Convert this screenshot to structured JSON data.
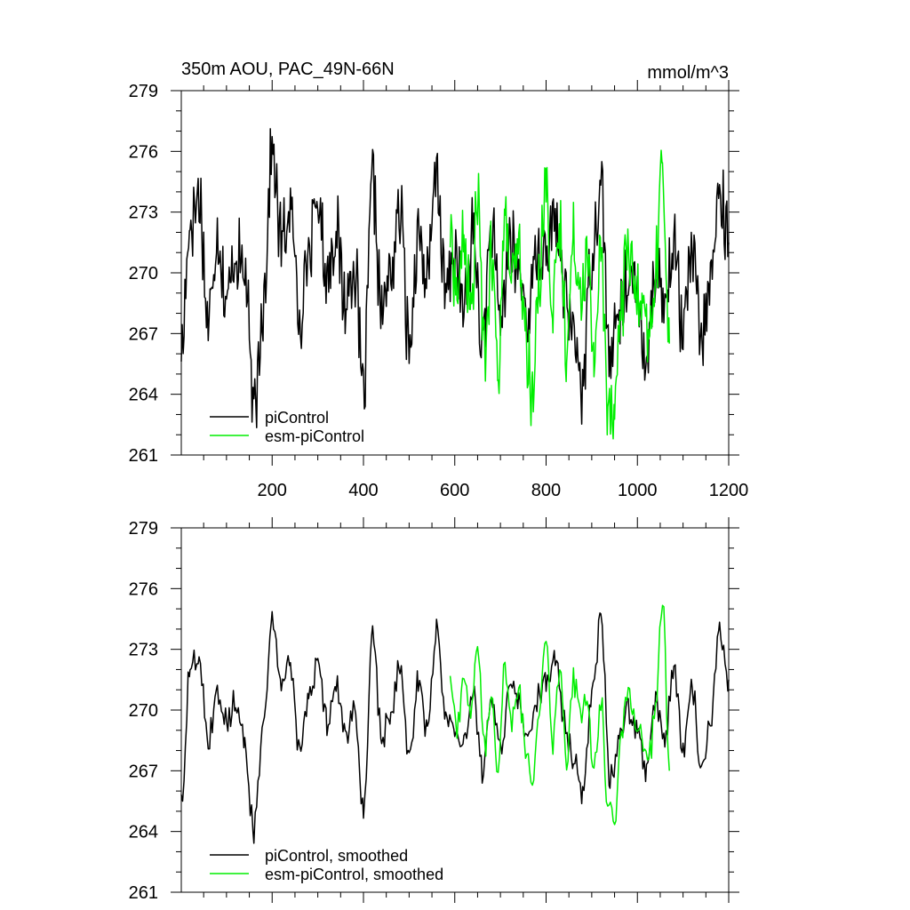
{
  "chart_data": [
    {
      "type": "line",
      "title": "350m AOU, PAC_49N-66N",
      "units": "mmol/m^3",
      "xlabel": "",
      "ylabel": "",
      "xlim": [
        1,
        1200
      ],
      "ylim": [
        261,
        279
      ],
      "xticks": [
        200,
        400,
        600,
        800,
        1000,
        1200
      ],
      "yticks": [
        261,
        264,
        267,
        270,
        273,
        276,
        279
      ],
      "x_tick_labels": [
        "200",
        "400",
        "600",
        "800",
        "1000",
        "1200"
      ],
      "y_tick_labels": [
        "261",
        "264",
        "267",
        "270",
        "273",
        "276",
        "279"
      ],
      "legend": [
        "piControl",
        "esm-piControl"
      ],
      "legend_position": "bottom-left",
      "series": [
        {
          "name": "piControl",
          "color": "#000000",
          "x": [
            1,
            20,
            40,
            60,
            80,
            100,
            120,
            140,
            160,
            180,
            200,
            220,
            240,
            260,
            280,
            300,
            320,
            340,
            360,
            380,
            400,
            420,
            440,
            460,
            480,
            500,
            520,
            540,
            560,
            580,
            600,
            620,
            640,
            660,
            680,
            700,
            720,
            740,
            760,
            780,
            800,
            820,
            840,
            860,
            880,
            900,
            920,
            940,
            960,
            980,
            1000,
            1020,
            1040,
            1060,
            1080,
            1100,
            1120,
            1140,
            1160,
            1180,
            1200
          ],
          "y": [
            266.0,
            272.5,
            273.8,
            267.5,
            272.0,
            268.5,
            271.0,
            270.0,
            263.0,
            268.5,
            276.0,
            271.5,
            273.0,
            268.0,
            271.0,
            273.5,
            270.0,
            272.0,
            268.5,
            270.5,
            264.0,
            274.5,
            268.0,
            270.0,
            273.0,
            266.5,
            272.0,
            269.5,
            275.0,
            269.0,
            271.0,
            268.0,
            272.0,
            266.5,
            272.0,
            267.5,
            271.5,
            270.0,
            268.0,
            271.0,
            270.5,
            273.0,
            269.0,
            267.0,
            264.5,
            271.0,
            274.5,
            265.5,
            268.0,
            270.0,
            268.5,
            266.0,
            270.5,
            268.5,
            271.5,
            267.0,
            271.0,
            266.5,
            269.5,
            274.0,
            271.5
          ]
        },
        {
          "name": "esm-piControl",
          "color": "#00ee00",
          "x": [
            590,
            605,
            620,
            635,
            650,
            665,
            680,
            695,
            710,
            725,
            740,
            755,
            770,
            785,
            800,
            815,
            830,
            845,
            860,
            875,
            890,
            905,
            920,
            935,
            950,
            965,
            980,
            995,
            1010,
            1025,
            1040,
            1055,
            1070
          ],
          "y": [
            272.0,
            269.0,
            271.5,
            268.0,
            273.5,
            266.0,
            270.5,
            265.5,
            272.5,
            269.5,
            271.0,
            267.0,
            263.5,
            270.0,
            274.5,
            268.0,
            272.0,
            266.5,
            271.5,
            269.5,
            270.5,
            266.0,
            271.0,
            264.0,
            263.5,
            268.5,
            271.5,
            269.0,
            268.0,
            266.5,
            270.0,
            275.5,
            266.5
          ]
        }
      ]
    },
    {
      "type": "line",
      "title": "",
      "xlabel": "",
      "ylabel": "",
      "xlim": [
        1,
        1200
      ],
      "ylim": [
        261,
        279
      ],
      "xticks": [
        200,
        400,
        600,
        800,
        1000,
        1200
      ],
      "yticks": [
        261,
        264,
        267,
        270,
        273,
        276,
        279
      ],
      "y_tick_labels": [
        "261",
        "264",
        "267",
        "270",
        "273",
        "276",
        "279"
      ],
      "legend": [
        "piControl, smoothed",
        "esm-piControl, smoothed"
      ],
      "legend_position": "bottom-left",
      "series": [
        {
          "name": "piControl, smoothed",
          "color": "#000000",
          "x": [
            1,
            20,
            40,
            60,
            80,
            100,
            120,
            140,
            160,
            180,
            200,
            220,
            240,
            260,
            280,
            300,
            320,
            340,
            360,
            380,
            400,
            420,
            440,
            460,
            480,
            500,
            520,
            540,
            560,
            580,
            600,
            620,
            640,
            660,
            680,
            700,
            720,
            740,
            760,
            780,
            800,
            820,
            840,
            860,
            880,
            900,
            920,
            940,
            960,
            980,
            1000,
            1020,
            1040,
            1060,
            1080,
            1100,
            1120,
            1140,
            1160,
            1180,
            1200
          ],
          "y": [
            265.5,
            272.0,
            272.8,
            268.5,
            271.0,
            269.5,
            270.5,
            268.5,
            264.0,
            269.0,
            274.5,
            271.0,
            272.5,
            268.0,
            270.5,
            272.5,
            269.5,
            271.5,
            268.5,
            270.0,
            265.0,
            274.0,
            268.5,
            270.0,
            272.5,
            267.5,
            271.5,
            269.0,
            274.0,
            270.0,
            269.0,
            268.5,
            271.0,
            267.0,
            271.0,
            268.0,
            271.0,
            270.5,
            268.5,
            270.5,
            271.5,
            272.5,
            269.5,
            267.5,
            266.0,
            270.5,
            274.5,
            266.5,
            268.5,
            270.0,
            269.0,
            267.0,
            270.5,
            268.5,
            272.0,
            268.0,
            271.0,
            267.0,
            269.5,
            274.0,
            271.5
          ]
        },
        {
          "name": "esm-piControl, smoothed",
          "color": "#00ee00",
          "x": [
            590,
            605,
            620,
            635,
            650,
            665,
            680,
            695,
            710,
            725,
            740,
            755,
            770,
            785,
            800,
            815,
            830,
            845,
            860,
            875,
            890,
            905,
            920,
            935,
            950,
            965,
            980,
            995,
            1010,
            1025,
            1040,
            1055,
            1070
          ],
          "y": [
            271.5,
            269.0,
            271.5,
            270.0,
            273.5,
            268.0,
            270.5,
            267.0,
            272.0,
            269.5,
            271.0,
            268.0,
            266.0,
            270.0,
            274.0,
            268.5,
            272.0,
            267.5,
            271.5,
            270.0,
            270.5,
            267.0,
            270.5,
            265.5,
            264.5,
            268.5,
            271.0,
            269.5,
            268.5,
            267.5,
            270.0,
            275.5,
            267.0
          ]
        }
      ]
    }
  ]
}
